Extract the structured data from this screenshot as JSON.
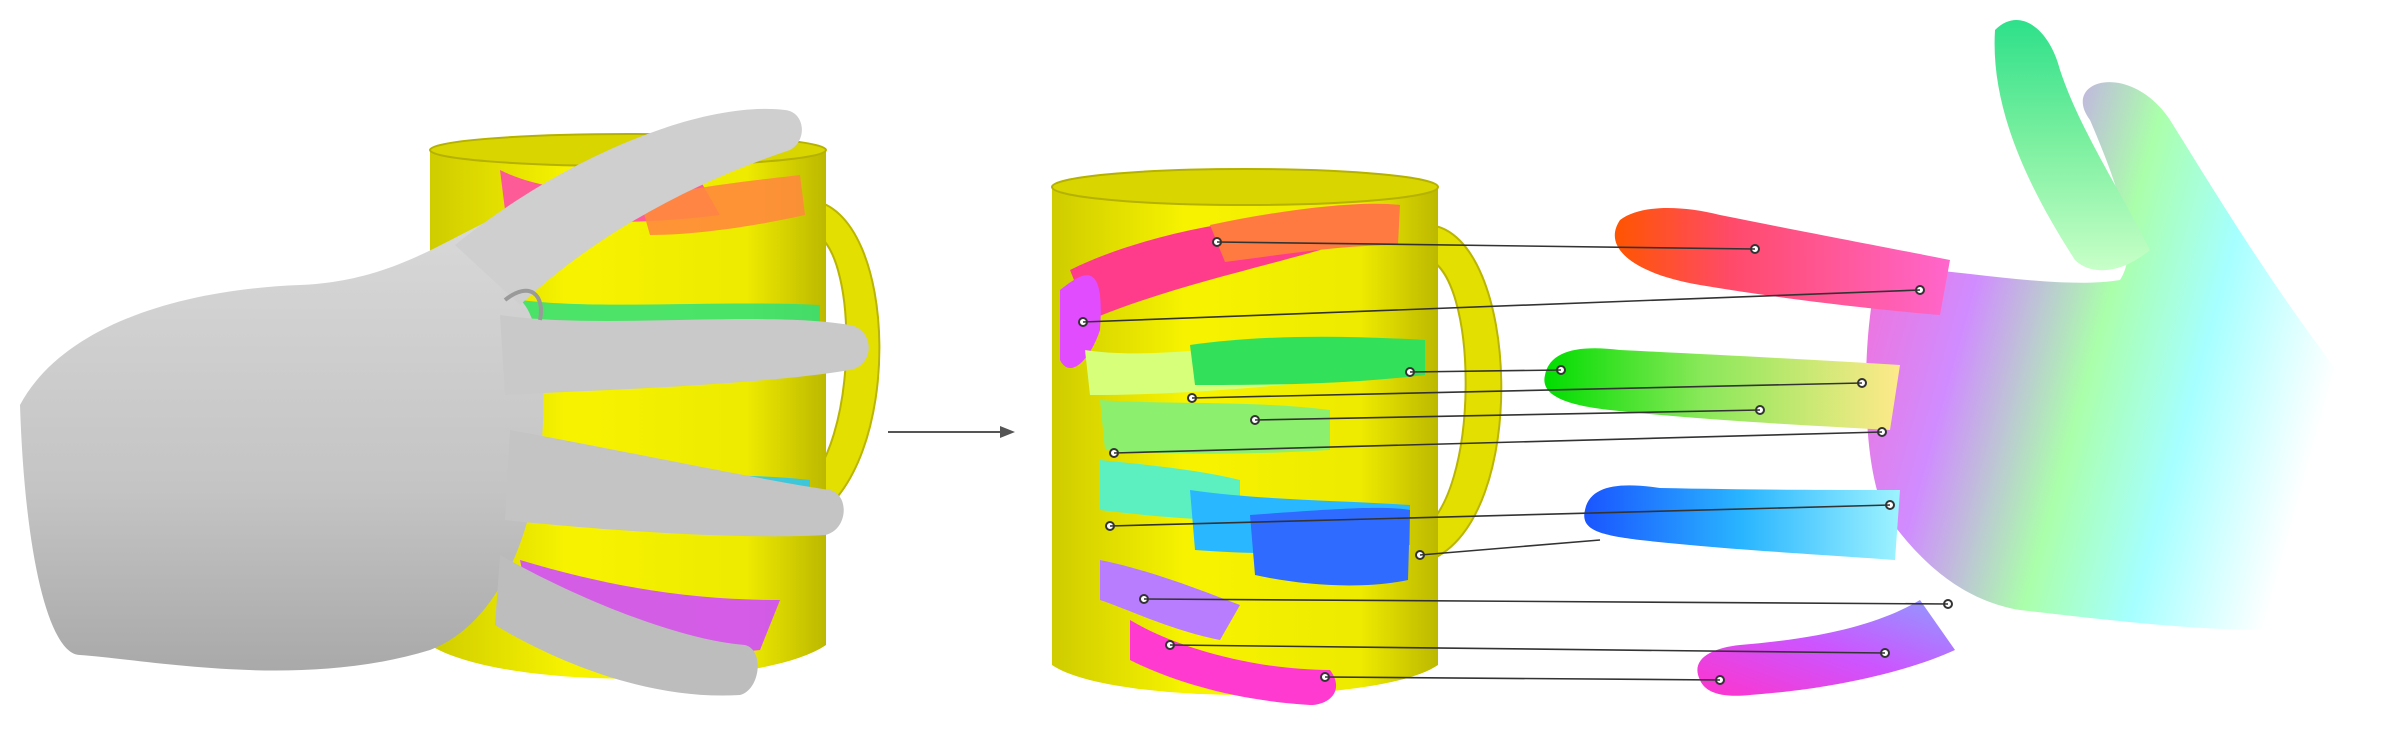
{
  "figure": {
    "panels": [
      {
        "name": "hand-grasping-mug",
        "description_hidden": true
      },
      {
        "name": "contact-map-on-mug"
      },
      {
        "name": "contact-map-on-hand"
      }
    ],
    "palette": {
      "object_base": "#f2f000",
      "hand_grey": "#c8c8c8",
      "arrow": "#555555",
      "correspondence_line": "#333333",
      "point_fill": "#ffffff"
    },
    "correspondences_count": 12
  }
}
